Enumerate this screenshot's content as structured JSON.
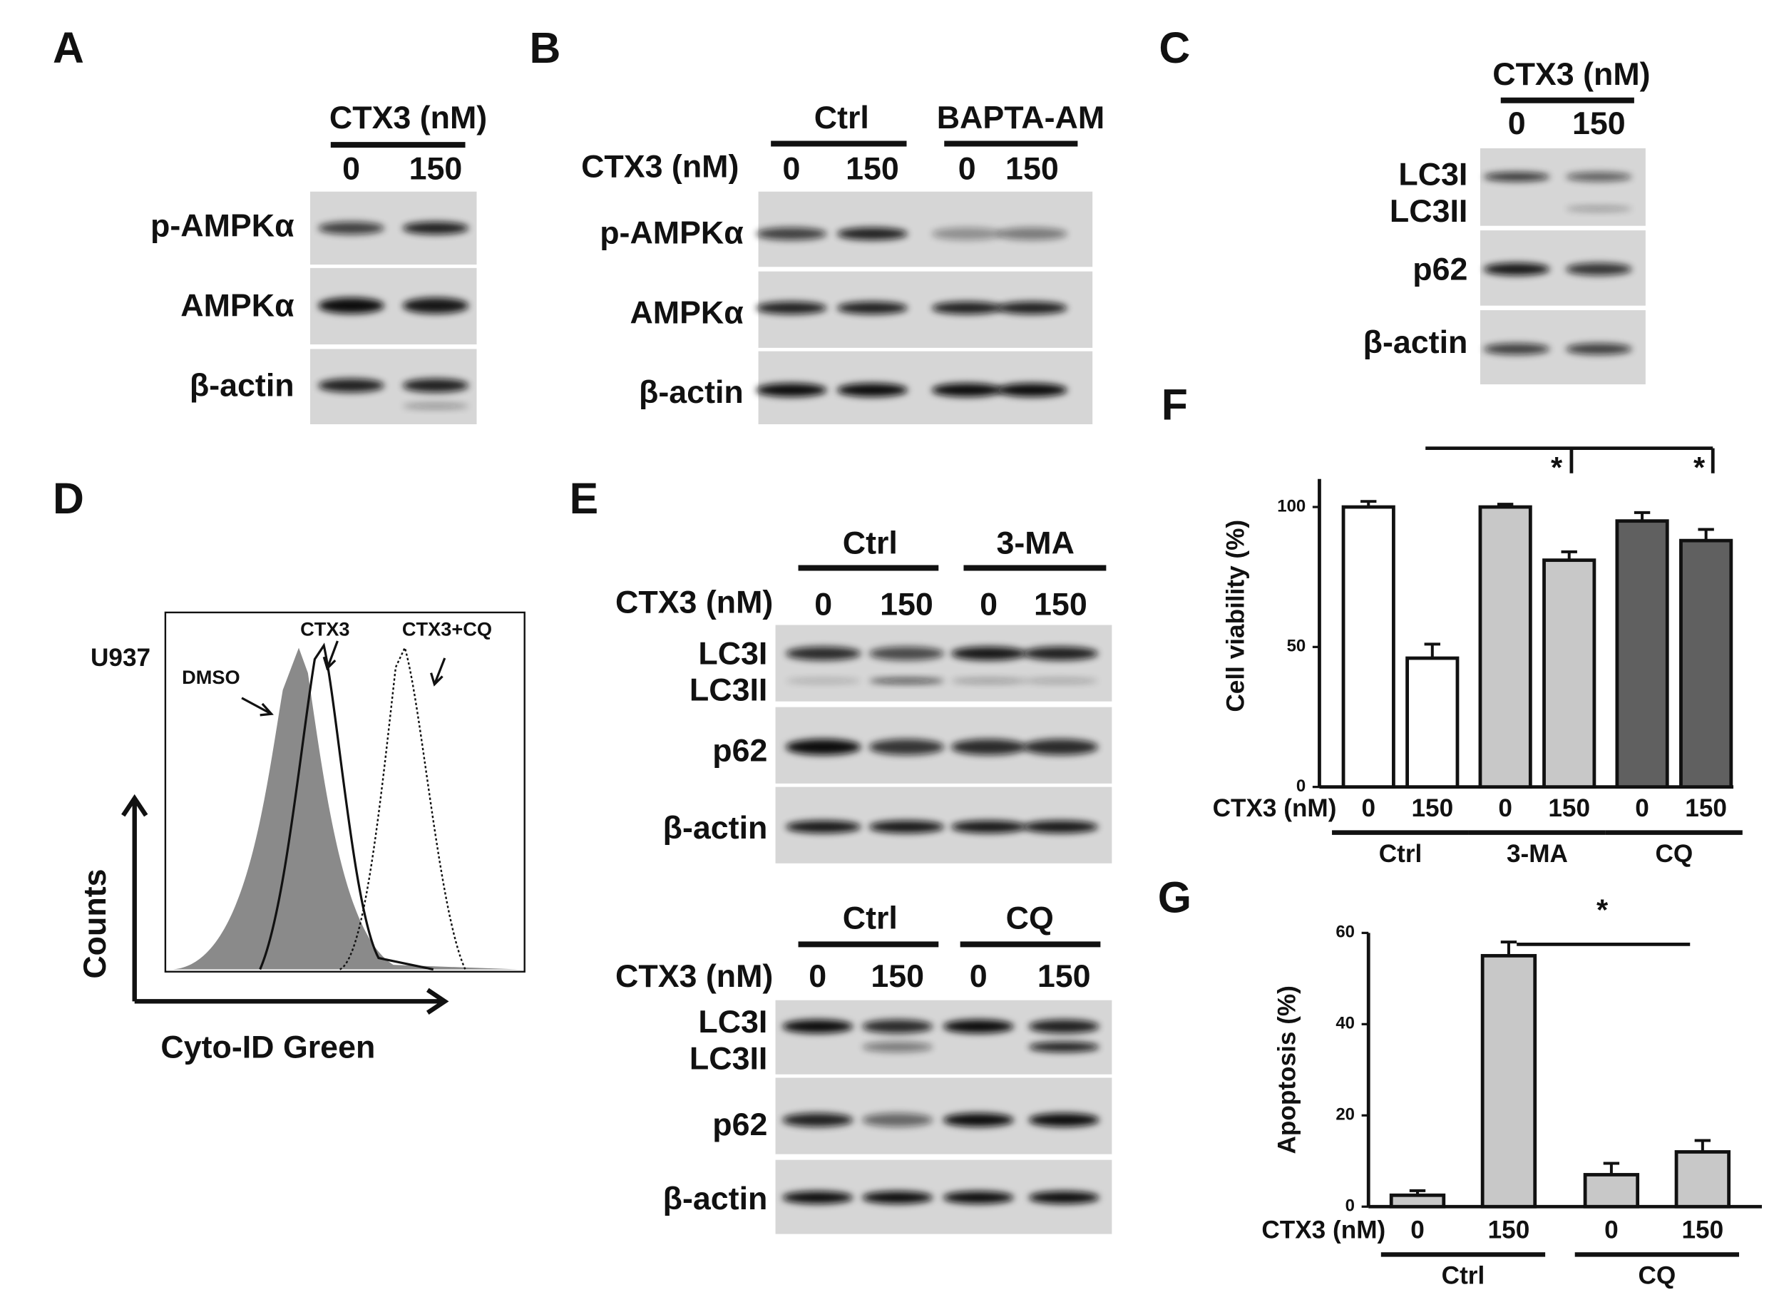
{
  "panels": {
    "A": {
      "label": "A",
      "treatment": "CTX3 (nM)",
      "lanes": [
        "0",
        "150"
      ],
      "rows": [
        "p-AMPKα",
        "AMPKα",
        "β-actin"
      ]
    },
    "B": {
      "label": "B",
      "groups": [
        "Ctrl",
        "BAPTA-AM"
      ],
      "treatment": "CTX3 (nM)",
      "lanes": [
        "0",
        "150",
        "0",
        "150"
      ],
      "rows": [
        "p-AMPKα",
        "AMPKα",
        "β-actin"
      ]
    },
    "C": {
      "label": "C",
      "treatment": "CTX3 (nM)",
      "lanes": [
        "0",
        "150"
      ],
      "rows": [
        "LC3I",
        "LC3II",
        "p62",
        "β-actin"
      ]
    },
    "D": {
      "label": "D",
      "cell_line": "U937",
      "curves": [
        "DMSO",
        "CTX3",
        "CTX3+CQ"
      ],
      "y_label": "Counts",
      "x_label": "Cyto-ID Green"
    },
    "E": {
      "label": "E",
      "blots": [
        {
          "groups": [
            "Ctrl",
            "3-MA"
          ],
          "treatment": "CTX3 (nM)",
          "lanes": [
            "0",
            "150",
            "0",
            "150"
          ],
          "rows": [
            "LC3I",
            "LC3II",
            "p62",
            "β-actin"
          ]
        },
        {
          "groups": [
            "Ctrl",
            "CQ"
          ],
          "treatment": "CTX3 (nM)",
          "lanes": [
            "0",
            "150",
            "0",
            "150"
          ],
          "rows": [
            "LC3I",
            "LC3II",
            "p62",
            "β-actin"
          ]
        }
      ]
    },
    "F": {
      "label": "F"
    },
    "G": {
      "label": "G"
    }
  },
  "chart_data": [
    {
      "type": "bar",
      "y_label": "Cell viability (%)",
      "x_label": "CTX3 (nM)",
      "categories": [
        "0",
        "150",
        "0",
        "150",
        "0",
        "150"
      ],
      "groups": [
        "Ctrl",
        "3-MA",
        "CQ"
      ],
      "values": [
        100,
        46,
        100,
        81,
        95,
        88
      ],
      "errors": [
        2,
        5,
        1,
        3,
        3,
        4
      ],
      "colors": [
        "#ffffff",
        "#ffffff",
        "#c8c8c8",
        "#c8c8c8",
        "#606060",
        "#606060"
      ],
      "ylim": [
        0,
        110
      ],
      "yticks": [
        0,
        50,
        100
      ],
      "significance": [
        "*",
        "*"
      ]
    },
    {
      "type": "bar",
      "y_label": "Apoptosis (%)",
      "x_label": "CTX3 (nM)",
      "categories": [
        "0",
        "150",
        "0",
        "150"
      ],
      "groups": [
        "Ctrl",
        "CQ"
      ],
      "values": [
        2.5,
        55,
        7,
        12
      ],
      "errors": [
        1,
        3,
        2.5,
        2.5
      ],
      "colors": [
        "#c8c8c8",
        "#c8c8c8",
        "#c8c8c8",
        "#c8c8c8"
      ],
      "ylim": [
        0,
        60
      ],
      "yticks": [
        0,
        20,
        40,
        60
      ],
      "significance": [
        "*"
      ]
    }
  ]
}
